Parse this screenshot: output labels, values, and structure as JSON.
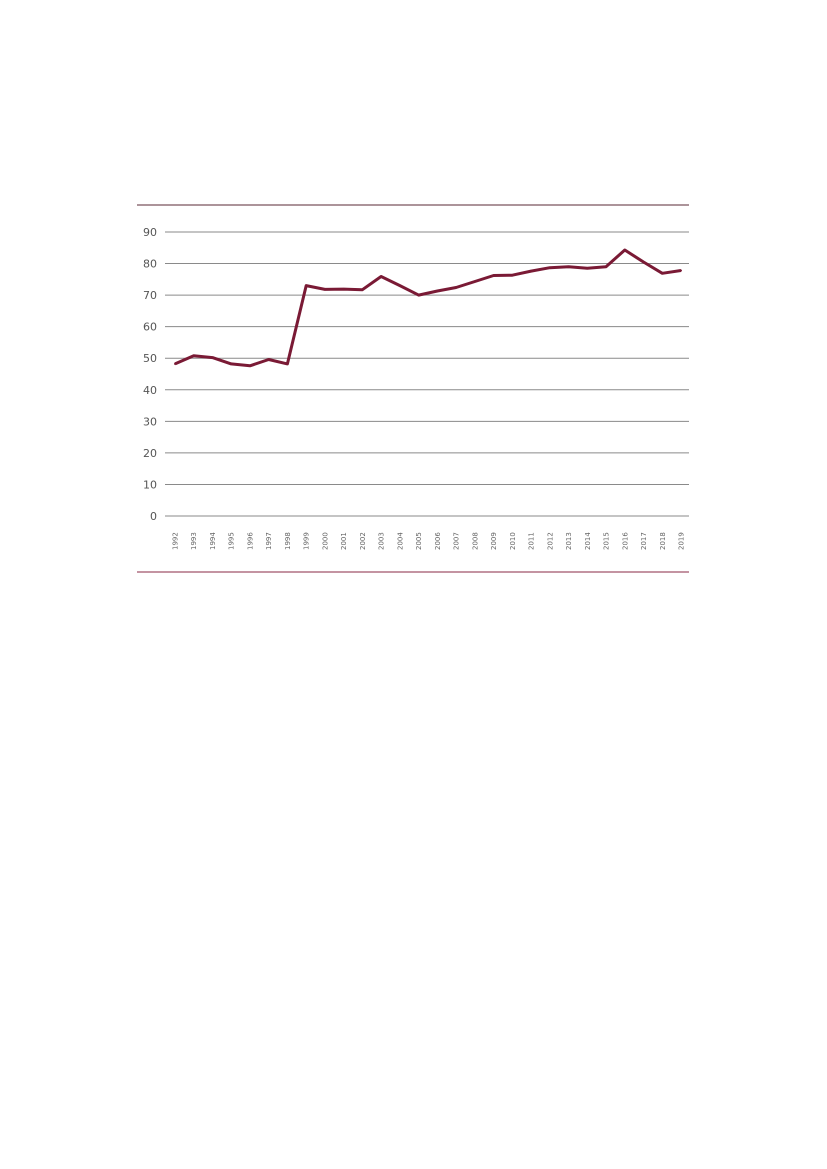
{
  "chart_data": {
    "type": "line",
    "title": "",
    "xlabel": "",
    "ylabel": "",
    "ylim": [
      0,
      90
    ],
    "yticks": [
      "0",
      "10",
      "20",
      "30",
      "40",
      "50",
      "60",
      "70",
      "80",
      "90"
    ],
    "grid": true,
    "legend": "none",
    "line_color": "#7a1a35",
    "x": [
      "1992",
      "1993",
      "1994",
      "1995",
      "1996",
      "1997",
      "1998",
      "1999",
      "2000",
      "2001",
      "2002",
      "2003",
      "2004",
      "2005",
      "2006",
      "2007",
      "2008",
      "2009",
      "2010",
      "2011",
      "2012",
      "2013",
      "2014",
      "2015",
      "2016",
      "2017",
      "2018",
      "2019"
    ],
    "series": [
      {
        "values": [
          48.2,
          50.8,
          50.2,
          48.2,
          47.6,
          49.6,
          48.2,
          73.0,
          71.8,
          71.9,
          71.7,
          75.9,
          73.0,
          70.0,
          71.3,
          72.4,
          74.3,
          76.2,
          76.3,
          77.6,
          78.7,
          79.0,
          78.5,
          79.0,
          84.3,
          80.5,
          76.9,
          77.8
        ]
      }
    ]
  }
}
